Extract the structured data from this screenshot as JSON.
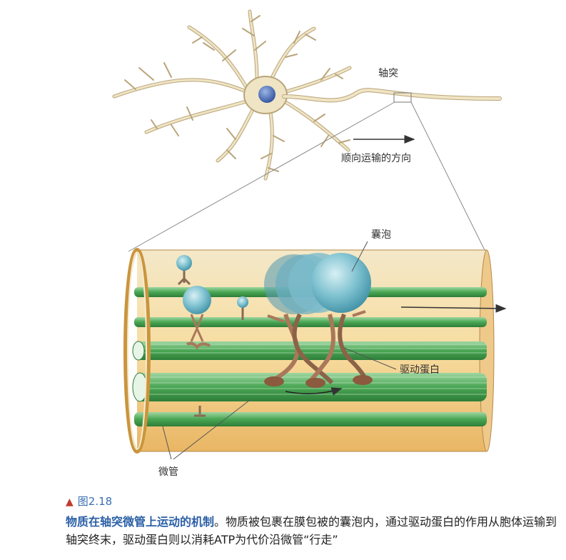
{
  "labels": {
    "axon": "轴突",
    "direction": "顺向运输的方向",
    "vesicle": "囊泡",
    "motor": "驱动蛋白",
    "microtubule": "微管"
  },
  "caption": {
    "figure_number": "图2.18",
    "title": "物质在轴突微管上运动的机制",
    "title_end": "。",
    "body": "物质被包裹在膜包被的囊泡内，通过驱动蛋白的作用从胞体运输到轴突终末，驱动蛋白则以消耗ATP为代价沿微管“行走”"
  },
  "colors": {
    "neuron": "#efe4c4",
    "nucleus": "#3f63b0",
    "microtubule": "#4faa57",
    "vesicle": "#6fb8c8",
    "motor": "#a9785a",
    "cylinder": "#f6dfa8",
    "caption_accent": "#2b5fa6"
  }
}
